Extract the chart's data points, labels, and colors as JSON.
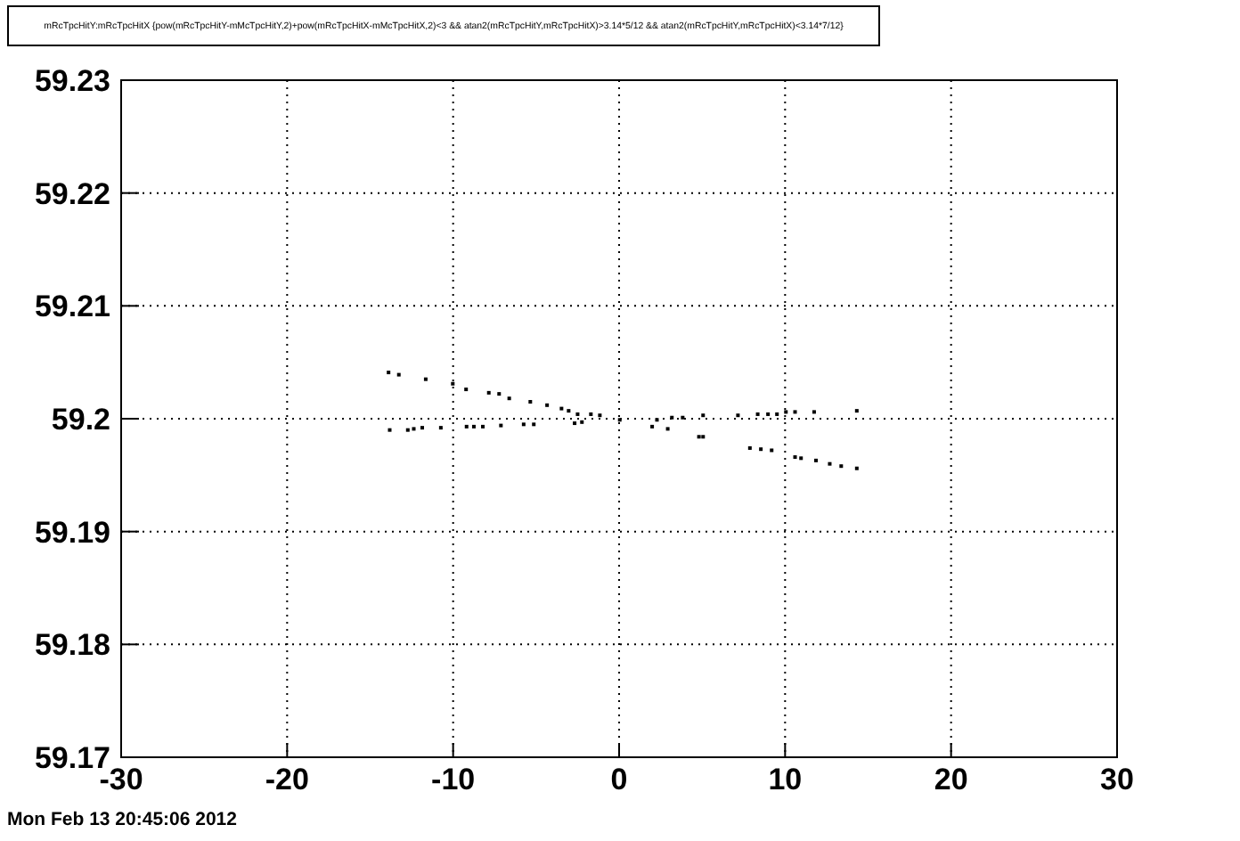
{
  "chart_data": {
    "type": "scatter",
    "title": "mRcTpcHitY:mRcTpcHitX {pow(mRcTpcHitY-mMcTpcHitY,2)+pow(mRcTpcHitX-mMcTpcHitX,2)<3 && atan2(mRcTpcHitY,mRcTpcHitX)>3.14*5/12 &&  atan2(mRcTpcHitY,mRcTpcHitX)<3.14*7/12}",
    "annotations": [
      "Mon Feb 13 20:45:06 2012"
    ],
    "x": [
      -13.89,
      -13.27,
      -11.65,
      -10.02,
      -9.22,
      -7.85,
      -7.23,
      -6.62,
      -5.35,
      -4.34,
      -3.47,
      -3.04,
      -2.5,
      7.88,
      8.54,
      9.19,
      10.6,
      10.96,
      11.86,
      12.69,
      13.38,
      14.32,
      -13.82,
      -12.73,
      -12.37,
      -11.86,
      -10.74,
      -9.19,
      -8.75,
      -8.21,
      -7.12,
      -5.75,
      -5.14,
      -2.68,
      -2.24,
      -1.7,
      -1.16,
      0.04,
      1.99,
      2.28,
      2.93,
      3.18,
      3.83,
      4.81,
      5.06,
      5.06,
      7.16,
      8.35,
      8.97,
      9.51,
      10.05,
      10.6,
      11.75,
      14.32
    ],
    "values": [
      59.2041,
      59.2039,
      59.2035,
      59.2031,
      59.2026,
      59.2023,
      59.2022,
      59.2018,
      59.2015,
      59.2012,
      59.2009,
      59.2007,
      59.2004,
      59.1974,
      59.1973,
      59.1972,
      59.1966,
      59.1965,
      59.1963,
      59.196,
      59.1958,
      59.1956,
      59.199,
      59.199,
      59.1991,
      59.1992,
      59.1992,
      59.1993,
      59.1993,
      59.1993,
      59.1994,
      59.1995,
      59.1995,
      59.1996,
      59.1997,
      59.2004,
      59.2003,
      59.1999,
      59.1993,
      59.1999,
      59.1991,
      59.2001,
      59.2001,
      59.1984,
      59.1984,
      59.2003,
      59.2003,
      59.2004,
      59.2004,
      59.2004,
      59.2006,
      59.2006,
      59.2006,
      59.2007
    ],
    "color": "#000000",
    "marker": "square",
    "grid": true,
    "xlim": [
      -30,
      30
    ],
    "xticks": [
      -30,
      -20,
      -10,
      0,
      10,
      20,
      30
    ],
    "ylim": [
      59.17,
      59.23
    ],
    "yticks": [
      59.17,
      59.18,
      59.19,
      59.2,
      59.21,
      59.22,
      59.23
    ]
  }
}
